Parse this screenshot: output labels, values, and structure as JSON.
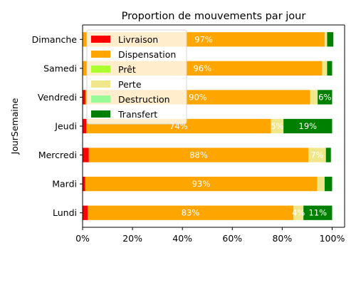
{
  "chart_data": {
    "type": "bar",
    "orientation": "horizontal",
    "stacked": true,
    "title": "Proportion de mouvements par jour",
    "xlabel": "",
    "ylabel": "JourSemaine",
    "xlim": [
      0,
      1.05
    ],
    "x_ticks": [
      {
        "value": 0,
        "label": "0%"
      },
      {
        "value": 0.2,
        "label": "20%"
      },
      {
        "value": 0.4,
        "label": "40%"
      },
      {
        "value": 0.6,
        "label": "60%"
      },
      {
        "value": 0.8,
        "label": "80%"
      },
      {
        "value": 1.0,
        "label": "100%"
      }
    ],
    "categories": [
      "Lundi",
      "Mardi",
      "Mercredi",
      "Jeudi",
      "Vendredi",
      "Samedi",
      "Dimanche"
    ],
    "series": [
      {
        "name": "Livraison",
        "color": "#ff0000",
        "values": [
          0.02,
          0.01,
          0.025,
          0.015,
          0.012,
          0.0,
          0.0
        ],
        "labels": [
          "",
          "",
          "",
          "",
          "",
          "",
          ""
        ]
      },
      {
        "name": "Dispensation",
        "color": "#ffa500",
        "values": [
          0.825,
          0.93,
          0.88,
          0.74,
          0.9,
          0.96,
          0.97
        ],
        "labels": [
          "83%",
          "93%",
          "88%",
          "74%",
          "90%",
          "96%",
          "97%"
        ]
      },
      {
        "name": "Prêt",
        "color": "#adff2f",
        "values": [
          0.0,
          0.0,
          0.0,
          0.0,
          0.0,
          0.0,
          0.0
        ],
        "labels": [
          "",
          "",
          "",
          "",
          "",
          "",
          ""
        ]
      },
      {
        "name": "Perte",
        "color": "#f0e68c",
        "values": [
          0.04,
          0.03,
          0.07,
          0.05,
          0.03,
          0.02,
          0.01
        ],
        "labels": [
          "4%",
          "",
          "7%",
          "5%",
          "",
          "",
          ""
        ]
      },
      {
        "name": "Destruction",
        "color": "#98fb98",
        "values": [
          0.0,
          0.0,
          0.0,
          0.0,
          0.0,
          0.0,
          0.0
        ],
        "labels": [
          "",
          "",
          "",
          "",
          "",
          "",
          ""
        ]
      },
      {
        "name": "Transfert",
        "color": "#008000",
        "values": [
          0.115,
          0.03,
          0.02,
          0.195,
          0.058,
          0.02,
          0.025
        ],
        "labels": [
          "11%",
          "",
          "",
          "19%",
          "6%",
          "",
          ""
        ]
      }
    ],
    "grid": false,
    "legend_position": "upper-left"
  }
}
